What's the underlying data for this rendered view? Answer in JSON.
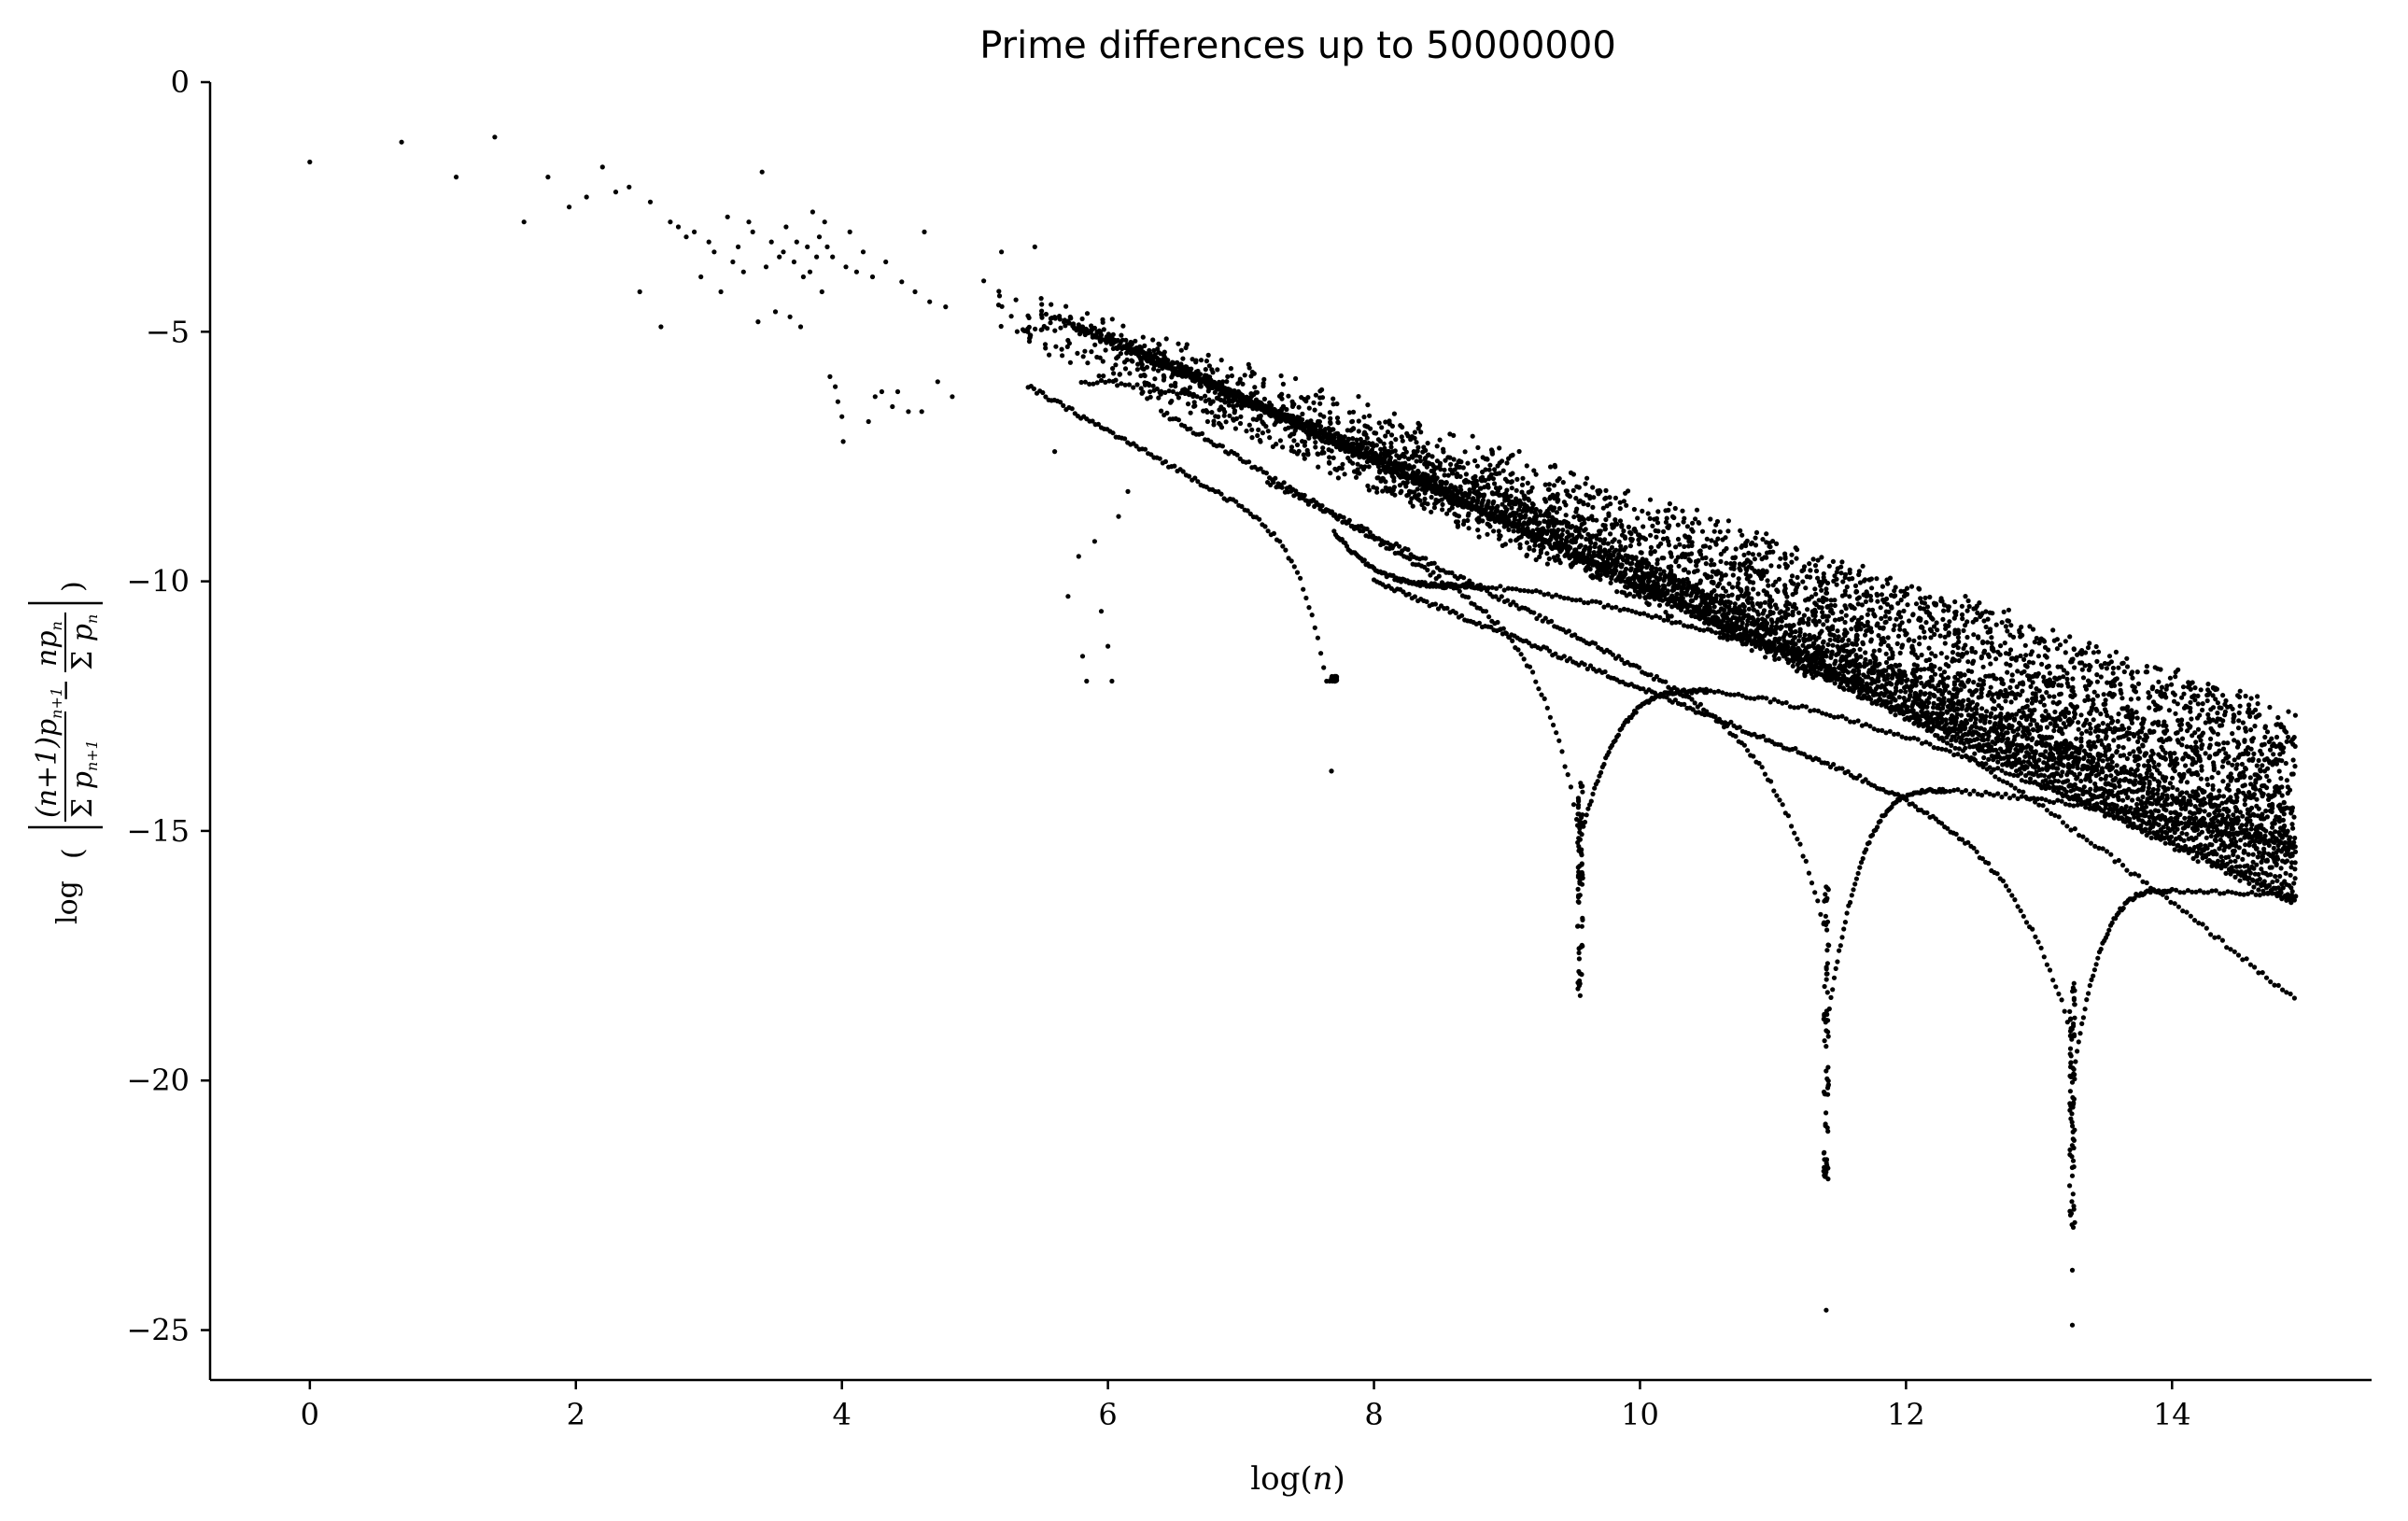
{
  "chart_data": {
    "type": "scatter",
    "title": "Prime differences up to 50000000",
    "xlabel": "log(n)",
    "ylabel": "log ( | (n+1)p_{n+1} / Σp_{n+1} − np_n / Σp_n | )",
    "xlim": [
      -0.75,
      15.5
    ],
    "ylim": [
      -26,
      0
    ],
    "x_ticks": [
      0,
      2,
      4,
      6,
      8,
      10,
      12,
      14
    ],
    "y_ticks": [
      0,
      -5,
      -10,
      -15,
      -20,
      -25
    ],
    "y_tick_labels": [
      "0",
      "−5",
      "−10",
      "−15",
      "−20",
      "−25"
    ],
    "x_tick_labels": [
      "0",
      "2",
      "4",
      "6",
      "8",
      "10",
      "12",
      "14"
    ],
    "grid": false,
    "marker_color": "#000000",
    "early_points": [
      [
        0.0,
        -1.6
      ],
      [
        0.69,
        -1.2
      ],
      [
        1.1,
        -1.9
      ],
      [
        1.39,
        -1.1
      ],
      [
        1.61,
        -2.8
      ],
      [
        1.79,
        -1.9
      ],
      [
        1.95,
        -2.5
      ],
      [
        2.08,
        -2.3
      ],
      [
        2.2,
        -1.7
      ],
      [
        2.3,
        -2.2
      ],
      [
        2.4,
        -2.1
      ],
      [
        2.48,
        -4.2
      ],
      [
        2.56,
        -2.4
      ],
      [
        2.64,
        -4.9
      ],
      [
        2.71,
        -2.8
      ],
      [
        2.77,
        -2.9
      ],
      [
        2.83,
        -3.1
      ],
      [
        2.89,
        -3.0
      ],
      [
        2.94,
        -3.9
      ],
      [
        3.0,
        -3.2
      ],
      [
        3.04,
        -3.4
      ],
      [
        3.09,
        -4.2
      ],
      [
        3.14,
        -2.7
      ],
      [
        3.18,
        -3.6
      ],
      [
        3.22,
        -3.3
      ],
      [
        3.26,
        -3.8
      ],
      [
        3.3,
        -2.8
      ],
      [
        3.33,
        -3.0
      ],
      [
        3.37,
        -4.8
      ],
      [
        3.4,
        -1.8
      ],
      [
        3.43,
        -3.7
      ],
      [
        3.47,
        -3.2
      ],
      [
        3.5,
        -4.6
      ],
      [
        3.53,
        -3.5
      ],
      [
        3.56,
        -3.4
      ],
      [
        3.58,
        -2.9
      ],
      [
        3.61,
        -4.7
      ],
      [
        3.64,
        -3.6
      ],
      [
        3.66,
        -3.2
      ],
      [
        3.69,
        -4.9
      ],
      [
        3.71,
        -3.9
      ],
      [
        3.74,
        -3.3
      ],
      [
        3.76,
        -3.8
      ],
      [
        3.78,
        -2.6
      ],
      [
        3.81,
        -3.5
      ],
      [
        3.83,
        -3.1
      ],
      [
        3.85,
        -4.2
      ],
      [
        3.87,
        -2.8
      ],
      [
        3.89,
        -3.3
      ],
      [
        3.91,
        -5.9
      ],
      [
        3.93,
        -3.5
      ],
      [
        3.95,
        -6.1
      ],
      [
        3.97,
        -6.4
      ],
      [
        4.0,
        -6.7
      ],
      [
        4.01,
        -7.2
      ],
      [
        4.03,
        -3.7
      ],
      [
        4.06,
        -3.0
      ],
      [
        4.11,
        -3.8
      ],
      [
        4.16,
        -3.4
      ],
      [
        4.2,
        -6.8
      ],
      [
        4.23,
        -3.9
      ],
      [
        4.25,
        -6.3
      ],
      [
        4.3,
        -6.2
      ],
      [
        4.33,
        -3.6
      ],
      [
        4.38,
        -6.5
      ],
      [
        4.42,
        -6.2
      ],
      [
        4.45,
        -4.0
      ],
      [
        4.5,
        -6.6
      ],
      [
        4.55,
        -4.2
      ],
      [
        4.6,
        -6.6
      ],
      [
        4.62,
        -3.0
      ],
      [
        4.66,
        -4.4
      ],
      [
        4.72,
        -6.0
      ],
      [
        4.78,
        -4.5
      ],
      [
        4.83,
        -6.3
      ],
      [
        5.2,
        -3.4
      ],
      [
        5.45,
        -3.3
      ],
      [
        5.6,
        -7.4
      ],
      [
        5.7,
        -10.3
      ],
      [
        5.78,
        -9.5
      ],
      [
        5.81,
        -11.5
      ],
      [
        5.84,
        -12.0
      ],
      [
        5.9,
        -9.2
      ],
      [
        5.95,
        -10.6
      ],
      [
        6.0,
        -11.3
      ],
      [
        6.03,
        -12.0
      ],
      [
        6.08,
        -8.7
      ],
      [
        6.15,
        -8.2
      ],
      [
        7.68,
        -13.8
      ]
    ]
  }
}
